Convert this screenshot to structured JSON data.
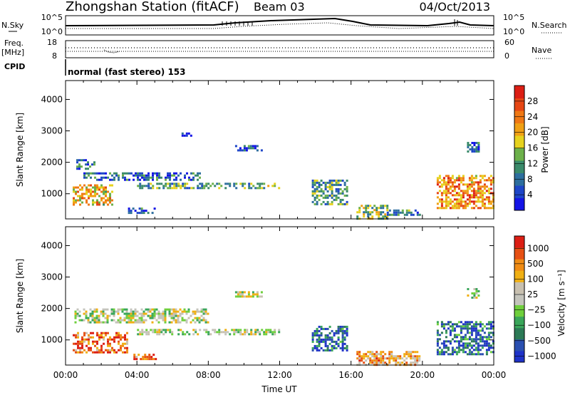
{
  "header": {
    "station": "Zhongshan Station (fitACF)",
    "beam": "Beam 03",
    "date": "04/Oct/2013"
  },
  "summary_panels": {
    "nsky_label": "N.Sky",
    "nsky_ticks": [
      "10^5",
      "10^0"
    ],
    "nsearch_label": "N.Search",
    "nsearch_ticks": [
      "10^5",
      "10^0"
    ],
    "freq_label": "Freq.",
    "freq_unit": "[MHz]",
    "freq_ticks": [
      "18",
      "8"
    ],
    "nave_label": "Nave",
    "nave_ticks": [
      "60",
      "0"
    ],
    "cpid_label": "CPID",
    "cpid_text": "normal (fast stereo) 153"
  },
  "chart_data": [
    {
      "type": "heatmap",
      "quantity": "power",
      "ylabel": "Slant Range [km]",
      "xlabel": "Time UT",
      "x_range_hours": [
        0,
        24
      ],
      "ylim": [
        200,
        4600
      ],
      "y_ticks": [
        1000,
        2000,
        3000,
        4000
      ],
      "x_ticks": [
        "00:00",
        "04:00",
        "08:00",
        "12:00",
        "16:00",
        "20:00",
        "00:00"
      ],
      "colorbar": {
        "label": "Power [dB]",
        "ticks": [
          "4",
          "8",
          "12",
          "16",
          "20",
          "24",
          "28"
        ],
        "colors": [
          "#1414e6",
          "#1e46c8",
          "#2d6e9e",
          "#3a8a6a",
          "#6cb04a",
          "#e6d21e",
          "#f0a014",
          "#f07814",
          "#e64614",
          "#dc1e14"
        ]
      },
      "regions": [
        {
          "t": [
            0.4,
            2.6
          ],
          "r": [
            650,
            1300
          ],
          "level": 0.62
        },
        {
          "t": [
            0.6,
            1.6
          ],
          "r": [
            1800,
            2100
          ],
          "level": 0.25
        },
        {
          "t": [
            1.0,
            7.5
          ],
          "r": [
            1450,
            1680
          ],
          "level": 0.22
        },
        {
          "t": [
            4.0,
            12.0
          ],
          "r": [
            1150,
            1350
          ],
          "level": 0.38
        },
        {
          "t": [
            3.5,
            5.0
          ],
          "r": [
            420,
            560
          ],
          "level": 0.18
        },
        {
          "t": [
            6.5,
            7.2
          ],
          "r": [
            2850,
            2950
          ],
          "level": 0.15
        },
        {
          "t": [
            9.5,
            11.0
          ],
          "r": [
            2350,
            2550
          ],
          "level": 0.2
        },
        {
          "t": [
            13.8,
            15.8
          ],
          "r": [
            650,
            1450
          ],
          "level": 0.35
        },
        {
          "t": [
            16.3,
            18.0
          ],
          "r": [
            200,
            650
          ],
          "level": 0.45
        },
        {
          "t": [
            18.0,
            19.8
          ],
          "r": [
            300,
            500
          ],
          "level": 0.3
        },
        {
          "t": [
            20.8,
            24.0
          ],
          "r": [
            550,
            1600
          ],
          "level": 0.72
        },
        {
          "t": [
            22.5,
            23.2
          ],
          "r": [
            2350,
            2650
          ],
          "level": 0.2
        }
      ]
    },
    {
      "type": "heatmap",
      "quantity": "velocity",
      "ylabel": "Slant Range [km]",
      "xlabel": "Time UT",
      "x_range_hours": [
        0,
        24
      ],
      "ylim": [
        200,
        4600
      ],
      "y_ticks": [
        1000,
        2000,
        3000,
        4000
      ],
      "x_ticks": [
        "00:00",
        "04:00",
        "08:00",
        "12:00",
        "16:00",
        "20:00",
        "00:00"
      ],
      "colorbar": {
        "label": "Velocity [m s⁻¹]",
        "ticks": [
          "1000",
          "500",
          "100",
          "25",
          "−25",
          "−100",
          "−500",
          "−1000"
        ],
        "colors": [
          "#1e32c8",
          "#2a4fb0",
          "#2c7a56",
          "#3aa65a",
          "#6fcf3c",
          "#c4c4bc",
          "#c8c0b0",
          "#f0b014",
          "#f08c14",
          "#e65014",
          "#dc1e14"
        ]
      },
      "regions": [
        {
          "t": [
            0.4,
            3.4
          ],
          "r": [
            600,
            1250
          ],
          "level": 0.82
        },
        {
          "t": [
            0.5,
            8.0
          ],
          "r": [
            1550,
            2000
          ],
          "level": 0.5
        },
        {
          "t": [
            4.0,
            12.0
          ],
          "r": [
            1150,
            1350
          ],
          "level": 0.5
        },
        {
          "t": [
            3.8,
            5.0
          ],
          "r": [
            400,
            560
          ],
          "level": 0.78
        },
        {
          "t": [
            9.5,
            11.0
          ],
          "r": [
            2350,
            2550
          ],
          "level": 0.5
        },
        {
          "t": [
            13.8,
            15.8
          ],
          "r": [
            650,
            1450
          ],
          "level": 0.15
        },
        {
          "t": [
            16.3,
            19.8
          ],
          "r": [
            200,
            650
          ],
          "level": 0.7
        },
        {
          "t": [
            20.8,
            24.0
          ],
          "r": [
            550,
            1600
          ],
          "level": 0.18
        },
        {
          "t": [
            22.5,
            23.2
          ],
          "r": [
            2350,
            2650
          ],
          "level": 0.5
        }
      ]
    }
  ]
}
